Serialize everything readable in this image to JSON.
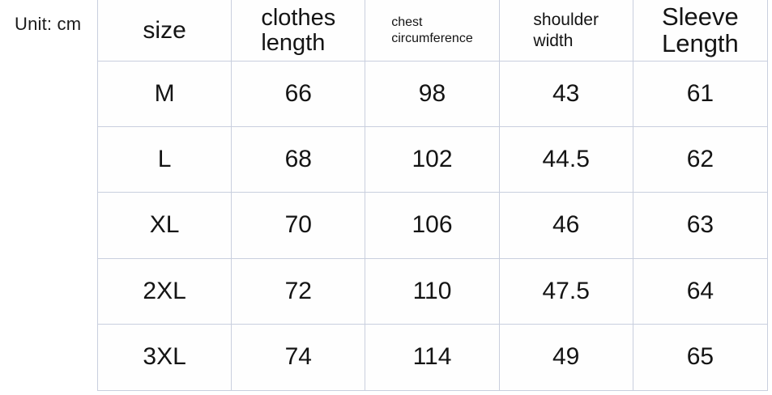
{
  "unit_label": "Unit: cm",
  "headers_display": [
    "size",
    "clothes\nlength",
    "chest\ncircumference",
    "shoulder\nwidth",
    "Sleeve\nLength"
  ],
  "chart_data": {
    "type": "table",
    "unit": "cm",
    "columns": [
      "size",
      "clothes length",
      "chest circumference",
      "shoulder width",
      "Sleeve Length"
    ],
    "rows": [
      [
        "M",
        66,
        98,
        43,
        61
      ],
      [
        "L",
        68,
        102,
        44.5,
        62
      ],
      [
        "XL",
        70,
        106,
        46,
        63
      ],
      [
        "2XL",
        72,
        110,
        47.5,
        64
      ],
      [
        "3XL",
        74,
        114,
        49,
        65
      ]
    ]
  },
  "colors": {
    "border": "#c9cfde",
    "text": "#141414",
    "page_background": "#ffffff"
  }
}
